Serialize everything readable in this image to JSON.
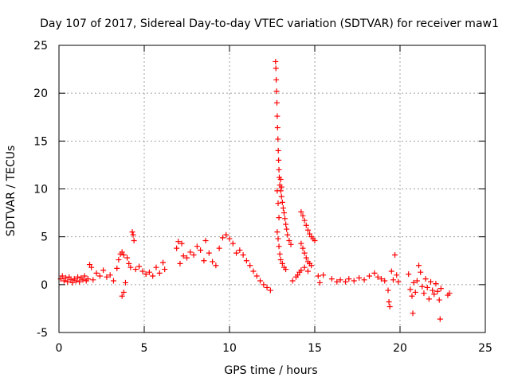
{
  "chart_data": {
    "type": "scatter",
    "title": "Day 107 of 2017, Sidereal Day-to-day VTEC variation (SDTVAR) for receiver maw1",
    "xlabel": "GPS time / hours",
    "ylabel": "SDTVAR / TECUs",
    "xlim": [
      0,
      25
    ],
    "ylim": [
      -5,
      25
    ],
    "x_ticks": [
      0,
      5,
      10,
      15,
      20,
      25
    ],
    "y_ticks": [
      -5,
      0,
      5,
      10,
      15,
      20,
      25
    ],
    "x_tick_labels": [
      "0",
      "5",
      "10",
      "15",
      "20",
      "25"
    ],
    "y_tick_labels": [
      "-5",
      "0",
      "5",
      "10",
      "15",
      "20",
      "25"
    ],
    "grid": true,
    "marker": "+",
    "series": [
      {
        "name": "SDTVAR",
        "color": "#ff0000",
        "points": [
          [
            0.1,
            0.6
          ],
          [
            0.2,
            0.9
          ],
          [
            0.3,
            0.4
          ],
          [
            0.4,
            0.7
          ],
          [
            0.5,
            0.3
          ],
          [
            0.6,
            0.8
          ],
          [
            0.7,
            0.5
          ],
          [
            0.8,
            0.2
          ],
          [
            0.9,
            0.6
          ],
          [
            1.0,
            0.4
          ],
          [
            1.1,
            0.8
          ],
          [
            1.2,
            0.3
          ],
          [
            1.3,
            0.7
          ],
          [
            1.4,
            0.5
          ],
          [
            1.5,
            0.9
          ],
          [
            1.6,
            0.4
          ],
          [
            1.7,
            0.6
          ],
          [
            1.8,
            2.1
          ],
          [
            1.9,
            1.8
          ],
          [
            2.0,
            0.5
          ],
          [
            2.2,
            1.2
          ],
          [
            2.4,
            0.9
          ],
          [
            2.6,
            1.5
          ],
          [
            2.8,
            0.8
          ],
          [
            3.0,
            1.0
          ],
          [
            3.2,
            0.4
          ],
          [
            3.4,
            1.7
          ],
          [
            3.5,
            2.6
          ],
          [
            3.6,
            3.2
          ],
          [
            3.7,
            3.4
          ],
          [
            3.8,
            3.1
          ],
          [
            3.9,
            0.2
          ],
          [
            3.7,
            -1.2
          ],
          [
            3.8,
            -0.8
          ],
          [
            4.0,
            2.8
          ],
          [
            4.1,
            2.2
          ],
          [
            4.2,
            1.8
          ],
          [
            4.3,
            5.5
          ],
          [
            4.35,
            5.2
          ],
          [
            4.4,
            4.6
          ],
          [
            4.5,
            1.6
          ],
          [
            4.7,
            1.9
          ],
          [
            4.9,
            1.4
          ],
          [
            5.1,
            1.1
          ],
          [
            5.3,
            1.3
          ],
          [
            5.5,
            0.9
          ],
          [
            5.7,
            1.8
          ],
          [
            5.9,
            1.2
          ],
          [
            6.1,
            2.3
          ],
          [
            6.2,
            1.6
          ],
          [
            6.9,
            3.8
          ],
          [
            7.0,
            4.5
          ],
          [
            7.1,
            2.2
          ],
          [
            7.2,
            4.3
          ],
          [
            7.3,
            3.0
          ],
          [
            7.5,
            2.8
          ],
          [
            7.7,
            3.4
          ],
          [
            7.9,
            3.1
          ],
          [
            8.1,
            4.0
          ],
          [
            8.3,
            3.6
          ],
          [
            8.5,
            2.5
          ],
          [
            8.6,
            4.6
          ],
          [
            8.8,
            3.3
          ],
          [
            9.0,
            2.4
          ],
          [
            9.2,
            2.0
          ],
          [
            9.4,
            3.8
          ],
          [
            9.6,
            4.9
          ],
          [
            9.8,
            5.2
          ],
          [
            10.0,
            4.8
          ],
          [
            10.2,
            4.3
          ],
          [
            10.4,
            3.3
          ],
          [
            10.6,
            3.6
          ],
          [
            10.8,
            3.1
          ],
          [
            11.0,
            2.5
          ],
          [
            11.2,
            2.0
          ],
          [
            11.4,
            1.4
          ],
          [
            11.6,
            0.9
          ],
          [
            11.8,
            0.4
          ],
          [
            12.0,
            0.0
          ],
          [
            12.2,
            -0.3
          ],
          [
            12.4,
            -0.6
          ],
          [
            12.7,
            23.3
          ],
          [
            12.72,
            22.6
          ],
          [
            12.74,
            21.4
          ],
          [
            12.76,
            20.2
          ],
          [
            12.78,
            19.0
          ],
          [
            12.8,
            17.6
          ],
          [
            12.82,
            16.4
          ],
          [
            12.84,
            15.2
          ],
          [
            12.86,
            14.0
          ],
          [
            12.88,
            13.0
          ],
          [
            12.9,
            12.0
          ],
          [
            12.92,
            11.2
          ],
          [
            12.95,
            10.4
          ],
          [
            13.0,
            9.8
          ],
          [
            13.05,
            9.2
          ],
          [
            13.1,
            8.6
          ],
          [
            13.15,
            8.0
          ],
          [
            13.2,
            7.5
          ],
          [
            13.25,
            6.9
          ],
          [
            13.3,
            6.3
          ],
          [
            13.35,
            5.8
          ],
          [
            13.4,
            5.2
          ],
          [
            13.5,
            4.6
          ],
          [
            13.6,
            4.2
          ],
          [
            12.8,
            5.5
          ],
          [
            12.85,
            4.8
          ],
          [
            12.9,
            4.0
          ],
          [
            12.95,
            3.2
          ],
          [
            13.0,
            2.6
          ],
          [
            13.1,
            2.2
          ],
          [
            13.2,
            1.8
          ],
          [
            13.3,
            1.6
          ],
          [
            13.0,
            11.0
          ],
          [
            13.05,
            10.2
          ],
          [
            12.85,
            8.5
          ],
          [
            12.9,
            7.0
          ],
          [
            12.8,
            9.8
          ],
          [
            13.7,
            0.4
          ],
          [
            13.9,
            0.8
          ],
          [
            14.0,
            1.0
          ],
          [
            14.1,
            1.3
          ],
          [
            14.2,
            7.6
          ],
          [
            14.3,
            7.2
          ],
          [
            14.4,
            6.7
          ],
          [
            14.5,
            6.2
          ],
          [
            14.6,
            5.7
          ],
          [
            14.7,
            5.3
          ],
          [
            14.8,
            5.0
          ],
          [
            14.9,
            4.8
          ],
          [
            15.0,
            4.6
          ],
          [
            14.2,
            4.3
          ],
          [
            14.3,
            3.8
          ],
          [
            14.4,
            3.3
          ],
          [
            14.5,
            2.8
          ],
          [
            14.6,
            2.4
          ],
          [
            14.7,
            2.2
          ],
          [
            14.8,
            2.0
          ],
          [
            14.2,
            1.5
          ],
          [
            14.4,
            1.8
          ],
          [
            14.6,
            1.4
          ],
          [
            15.2,
            0.9
          ],
          [
            15.3,
            0.2
          ],
          [
            15.5,
            1.0
          ],
          [
            16.0,
            0.6
          ],
          [
            16.3,
            0.3
          ],
          [
            16.5,
            0.5
          ],
          [
            16.8,
            0.3
          ],
          [
            17.0,
            0.6
          ],
          [
            17.3,
            0.4
          ],
          [
            17.6,
            0.7
          ],
          [
            17.9,
            0.5
          ],
          [
            18.2,
            0.9
          ],
          [
            18.5,
            1.2
          ],
          [
            18.7,
            0.8
          ],
          [
            18.9,
            0.6
          ],
          [
            19.1,
            0.4
          ],
          [
            19.3,
            -0.6
          ],
          [
            19.35,
            -1.8
          ],
          [
            19.4,
            -2.3
          ],
          [
            19.5,
            1.4
          ],
          [
            19.6,
            0.5
          ],
          [
            19.7,
            3.1
          ],
          [
            19.8,
            1.0
          ],
          [
            19.9,
            0.3
          ],
          [
            20.5,
            1.1
          ],
          [
            20.6,
            -0.5
          ],
          [
            20.7,
            -1.2
          ],
          [
            20.75,
            -3.0
          ],
          [
            20.8,
            0.2
          ],
          [
            20.9,
            -0.8
          ],
          [
            21.0,
            0.4
          ],
          [
            21.1,
            2.0
          ],
          [
            21.2,
            1.3
          ],
          [
            21.3,
            -0.2
          ],
          [
            21.4,
            -0.9
          ],
          [
            21.5,
            0.6
          ],
          [
            21.6,
            -0.3
          ],
          [
            21.7,
            -1.5
          ],
          [
            21.8,
            0.3
          ],
          [
            21.9,
            -0.6
          ],
          [
            22.0,
            -1.0
          ],
          [
            22.1,
            0.1
          ],
          [
            22.2,
            -0.7
          ],
          [
            22.3,
            -1.6
          ],
          [
            22.35,
            -3.6
          ],
          [
            22.4,
            -0.4
          ],
          [
            22.8,
            -1.1
          ],
          [
            22.9,
            -0.9
          ]
        ]
      }
    ]
  }
}
